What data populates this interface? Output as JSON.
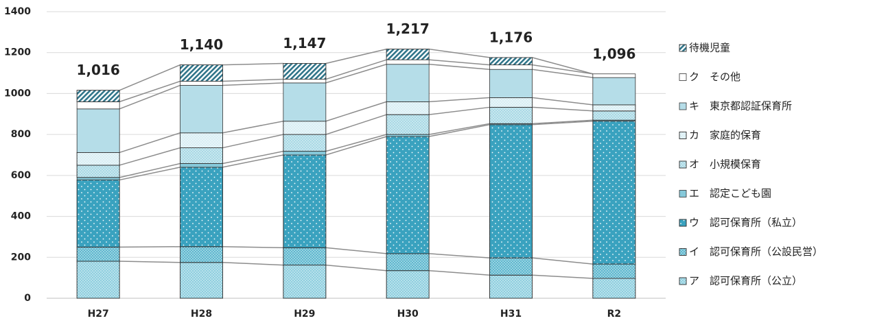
{
  "chart_data": {
    "type": "stacked-bar",
    "categories": [
      "H27",
      "H28",
      "H29",
      "H30",
      "H31",
      "R2"
    ],
    "series": [
      {
        "name": "ア　認可保育所（公立）",
        "color": "#8fcfdf",
        "pattern": "dots",
        "values": [
          181,
          175,
          162,
          135,
          113,
          97
        ]
      },
      {
        "name": "イ　認可保育所（公設民営）",
        "color": "#5fb8cf",
        "pattern": "dots",
        "values": [
          69,
          77,
          85,
          83,
          84,
          70
        ]
      },
      {
        "name": "ウ　認可保育所（私立）",
        "color": "#3aa2bf",
        "pattern": "sparse",
        "values": [
          328,
          388,
          453,
          572,
          651,
          698
        ]
      },
      {
        "name": "エ　認定こども園",
        "color": "#86c9da",
        "pattern": "none",
        "values": [
          12,
          18,
          18,
          10,
          5,
          5
        ]
      },
      {
        "name": "オ　小規模保育",
        "color": "#a9d9e5",
        "pattern": "dots",
        "values": [
          60,
          77,
          82,
          97,
          80,
          45
        ]
      },
      {
        "name": "カ　家庭的保育",
        "color": "#d9eef4",
        "pattern": "dots",
        "values": [
          62,
          73,
          65,
          63,
          47,
          30
        ]
      },
      {
        "name": "キ　東京都認証保育所",
        "color": "#b5dde8",
        "pattern": "none",
        "values": [
          213,
          232,
          187,
          183,
          138,
          133
        ]
      },
      {
        "name": "ク　その他",
        "color": "#ffffff",
        "pattern": "none",
        "values": [
          35,
          20,
          18,
          22,
          22,
          18
        ]
      },
      {
        "name": "待機児童",
        "color": "#2f7489",
        "pattern": "hatch",
        "values": [
          56,
          80,
          77,
          52,
          36,
          0
        ]
      }
    ],
    "totals": {
      "values": [
        1016,
        1140,
        1147,
        1217,
        1176,
        1096
      ],
      "value_labels": [
        "1,016",
        "1,140",
        "1,147",
        "1,217",
        "1,176",
        "1,096"
      ]
    },
    "ylim": [
      0,
      1400
    ],
    "yticks": [
      0,
      200,
      400,
      600,
      800,
      1000,
      1200,
      1400
    ],
    "grid": true
  }
}
